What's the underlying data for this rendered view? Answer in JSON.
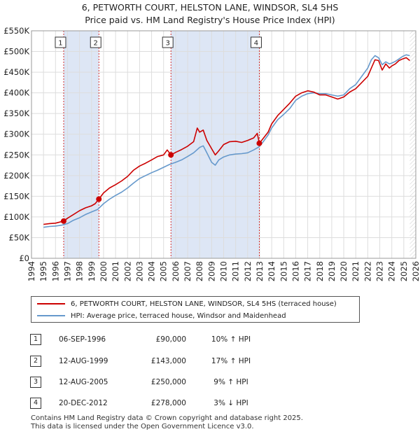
{
  "title_line1": "6, PETWORTH COURT, HELSTON LANE, WINDSOR, SL4 5HS",
  "title_line2": "Price paid vs. HM Land Registry's House Price Index (HPI)",
  "colors": {
    "property": "#cc0000",
    "hpi": "#6699cc",
    "shade": "#dde6f5",
    "grid": "#dddddd",
    "marker_line": "#cc0000"
  },
  "chart_data": {
    "type": "line",
    "title": "6, PETWORTH COURT, HELSTON LANE, WINDSOR, SL4 5HS",
    "subtitle": "Price paid vs. HM Land Registry's House Price Index (HPI)",
    "xlabel": "",
    "ylabel": "",
    "xlim": [
      1994,
      2026
    ],
    "ylim": [
      0,
      550000
    ],
    "y_ticks": [
      0,
      50000,
      100000,
      150000,
      200000,
      250000,
      300000,
      350000,
      400000,
      450000,
      500000,
      550000
    ],
    "y_tick_labels": [
      "£0",
      "£50K",
      "£100K",
      "£150K",
      "£200K",
      "£250K",
      "£300K",
      "£350K",
      "£400K",
      "£450K",
      "£500K",
      "£550K"
    ],
    "x_ticks": [
      1994,
      1995,
      1996,
      1997,
      1998,
      1999,
      2000,
      2001,
      2002,
      2003,
      2004,
      2005,
      2006,
      2007,
      2008,
      2009,
      2010,
      2011,
      2012,
      2013,
      2014,
      2015,
      2016,
      2017,
      2018,
      2019,
      2020,
      2021,
      2022,
      2023,
      2024,
      2025,
      2026
    ],
    "x_tick_labels": [
      "1994",
      "1995",
      "1996",
      "1997",
      "1998",
      "1999",
      "2000",
      "2001",
      "2002",
      "2003",
      "2004",
      "2005",
      "2006",
      "2007",
      "2008",
      "2009",
      "2010",
      "2011",
      "2012",
      "2013",
      "2014",
      "2015",
      "2016",
      "2017",
      "2018",
      "2019",
      "2020",
      "2021",
      "2022",
      "2023",
      "2024",
      "2025",
      "2026"
    ],
    "grid": true,
    "shaded_spans": [
      [
        1996.68,
        1999.61
      ],
      [
        2005.61,
        2012.97
      ]
    ],
    "data_end": 2025.5,
    "series": [
      {
        "name": "6, PETWORTH COURT, HELSTON LANE, WINDSOR, SL4 5HS (terraced house)",
        "x": [
          1995.0,
          1995.5,
          1996.0,
          1996.68,
          1997.0,
          1997.5,
          1998.0,
          1998.5,
          1999.0,
          1999.3,
          1999.61,
          2000.0,
          2000.5,
          2001.0,
          2001.5,
          2002.0,
          2002.5,
          2003.0,
          2003.5,
          2004.0,
          2004.5,
          2005.0,
          2005.3,
          2005.61,
          2006.0,
          2006.5,
          2007.0,
          2007.5,
          2007.8,
          2008.0,
          2008.3,
          2008.6,
          2009.0,
          2009.3,
          2009.6,
          2010.0,
          2010.5,
          2011.0,
          2011.5,
          2012.0,
          2012.5,
          2012.8,
          2012.97,
          2013.3,
          2013.7,
          2014.0,
          2014.5,
          2015.0,
          2015.5,
          2016.0,
          2016.5,
          2017.0,
          2017.5,
          2018.0,
          2018.5,
          2019.0,
          2019.5,
          2020.0,
          2020.5,
          2021.0,
          2021.5,
          2022.0,
          2022.3,
          2022.6,
          2022.9,
          2023.2,
          2023.5,
          2023.8,
          2024.0,
          2024.3,
          2024.6,
          2024.9,
          2025.2,
          2025.5
        ],
        "values": [
          82000,
          84000,
          85000,
          90000,
          97000,
          106000,
          115000,
          122000,
          127000,
          132000,
          143000,
          158000,
          170000,
          178000,
          187000,
          198000,
          213000,
          223000,
          230000,
          238000,
          246000,
          250000,
          262000,
          250000,
          256000,
          263000,
          271000,
          282000,
          315000,
          305000,
          310000,
          285000,
          265000,
          250000,
          260000,
          275000,
          282000,
          283000,
          280000,
          285000,
          291000,
          302000,
          278000,
          290000,
          305000,
          325000,
          345000,
          360000,
          375000,
          392000,
          400000,
          405000,
          402000,
          395000,
          395000,
          390000,
          385000,
          390000,
          402000,
          410000,
          425000,
          440000,
          460000,
          480000,
          478000,
          455000,
          470000,
          460000,
          465000,
          470000,
          478000,
          482000,
          485000,
          478000
        ]
      },
      {
        "name": "HPI: Average price, terraced house, Windsor and Maidenhead",
        "x": [
          1995.0,
          1995.5,
          1996.0,
          1996.5,
          1997.0,
          1997.5,
          1998.0,
          1998.5,
          1999.0,
          1999.5,
          2000.0,
          2000.5,
          2001.0,
          2001.5,
          2002.0,
          2002.5,
          2003.0,
          2003.5,
          2004.0,
          2004.5,
          2005.0,
          2005.5,
          2006.0,
          2006.5,
          2007.0,
          2007.5,
          2008.0,
          2008.3,
          2008.6,
          2009.0,
          2009.3,
          2009.6,
          2010.0,
          2010.5,
          2011.0,
          2011.5,
          2012.0,
          2012.5,
          2012.97,
          2013.3,
          2013.7,
          2014.0,
          2014.5,
          2015.0,
          2015.5,
          2016.0,
          2016.5,
          2017.0,
          2017.5,
          2018.0,
          2018.5,
          2019.0,
          2019.5,
          2020.0,
          2020.5,
          2021.0,
          2021.5,
          2022.0,
          2022.3,
          2022.6,
          2022.9,
          2023.2,
          2023.5,
          2023.8,
          2024.0,
          2024.3,
          2024.6,
          2024.9,
          2025.2,
          2025.5
        ],
        "values": [
          75000,
          77000,
          78000,
          80000,
          84000,
          92000,
          98000,
          106000,
          112000,
          118000,
          132000,
          143000,
          152000,
          160000,
          170000,
          182000,
          193000,
          200000,
          207000,
          213000,
          220000,
          227000,
          232000,
          238000,
          246000,
          255000,
          268000,
          272000,
          255000,
          232000,
          225000,
          238000,
          245000,
          250000,
          252000,
          253000,
          255000,
          262000,
          270000,
          282000,
          298000,
          315000,
          335000,
          348000,
          362000,
          382000,
          392000,
          398000,
          400000,
          398000,
          398000,
          395000,
          392000,
          395000,
          410000,
          420000,
          440000,
          460000,
          480000,
          490000,
          485000,
          468000,
          475000,
          470000,
          472000,
          476000,
          482000,
          488000,
          492000,
          490000
        ]
      }
    ],
    "sales": [
      {
        "num": "1",
        "x": 1996.68,
        "value": 90000
      },
      {
        "num": "2",
        "x": 1999.61,
        "value": 143000
      },
      {
        "num": "3",
        "x": 2005.61,
        "value": 250000
      },
      {
        "num": "4",
        "x": 2012.97,
        "value": 278000
      }
    ]
  },
  "legend": {
    "property_label": "6, PETWORTH COURT, HELSTON LANE, WINDSOR, SL4 5HS (terraced house)",
    "hpi_label": "HPI: Average price, terraced house, Windsor and Maidenhead"
  },
  "transactions": [
    {
      "num": "1",
      "date": "06-SEP-1996",
      "price": "£90,000",
      "hpi": "10% ↑ HPI"
    },
    {
      "num": "2",
      "date": "12-AUG-1999",
      "price": "£143,000",
      "hpi": "17% ↑ HPI"
    },
    {
      "num": "3",
      "date": "12-AUG-2005",
      "price": "£250,000",
      "hpi": "9% ↑ HPI"
    },
    {
      "num": "4",
      "date": "20-DEC-2012",
      "price": "£278,000",
      "hpi": "3% ↓ HPI"
    }
  ],
  "footer_line1": "Contains HM Land Registry data © Crown copyright and database right 2025.",
  "footer_line2": "This data is licensed under the Open Government Licence v3.0."
}
